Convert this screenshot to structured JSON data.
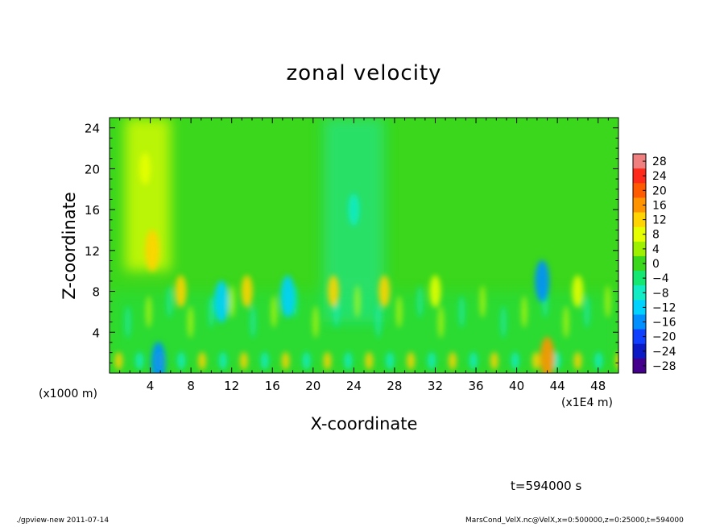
{
  "chart_data": {
    "type": "heatmap",
    "title": "zonal velocity",
    "xlabel": "X-coordinate",
    "ylabel": "Z-coordinate",
    "x_unit_left": "(x1000 m)",
    "x_unit_right": "(x1E4 m)",
    "xlim": [
      0,
      50
    ],
    "ylim": [
      0,
      25
    ],
    "x_ticks": [
      4,
      8,
      12,
      16,
      20,
      24,
      28,
      32,
      36,
      40,
      44,
      48
    ],
    "y_ticks": [
      4,
      8,
      12,
      16,
      20,
      24
    ],
    "colorbar": {
      "labels": [
        "28",
        "24",
        "20",
        "16",
        "12",
        "8",
        "4",
        "0",
        "−4",
        "−8",
        "−12",
        "−16",
        "−20",
        "−24",
        "−28"
      ],
      "values": [
        28,
        24,
        20,
        16,
        12,
        8,
        4,
        0,
        -4,
        -8,
        -12,
        -16,
        -20,
        -24,
        -28
      ],
      "colors": [
        "#f08080",
        "#ff2a1a",
        "#ff5a00",
        "#ff9400",
        "#ffd400",
        "#e6ff00",
        "#9cf000",
        "#3ad71c",
        "#15e872",
        "#11ecc4",
        "#00d2ff",
        "#008fff",
        "#1040ff",
        "#0c1ac6",
        "#44008c"
      ]
    },
    "field": {
      "background_value": 0,
      "notes": "Mostly near 0 (green) with positive tongues near x~2-5 and alternating +/- cells along the bottom boundary",
      "features": [
        {
          "x": 3.5,
          "z": 20,
          "value": 8
        },
        {
          "x": 4.2,
          "z": 12,
          "value": 12
        },
        {
          "x": 4.8,
          "z": 1,
          "value": -18
        },
        {
          "x": 7,
          "z": 8,
          "value": 10
        },
        {
          "x": 11,
          "z": 7,
          "value": -14
        },
        {
          "x": 13.5,
          "z": 8,
          "value": 10
        },
        {
          "x": 17.5,
          "z": 7.5,
          "value": -13
        },
        {
          "x": 22,
          "z": 8,
          "value": 10
        },
        {
          "x": 24,
          "z": 16,
          "value": -7
        },
        {
          "x": 27,
          "z": 8,
          "value": 11
        },
        {
          "x": 32,
          "z": 8,
          "value": 9
        },
        {
          "x": 42.5,
          "z": 9,
          "value": -16
        },
        {
          "x": 46,
          "z": 8,
          "value": 9
        },
        {
          "x": 43,
          "z": 1.5,
          "value": 14
        }
      ]
    }
  },
  "annotations": {
    "time": "t=594000 s",
    "footer_left": "./gpview-new   2011-07-14",
    "footer_right": "MarsCond_VelX.nc@VelX,x=0:500000,z=0:25000,t=594000"
  }
}
